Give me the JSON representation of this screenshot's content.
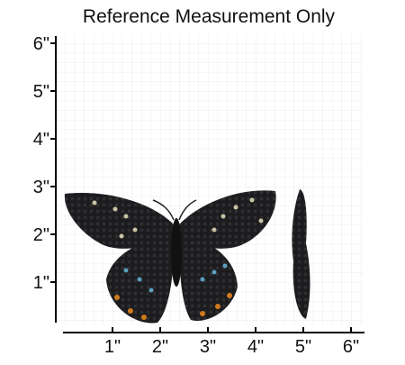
{
  "title": "Reference Measurement Only",
  "ruler": {
    "x_labels": [
      "1\"",
      "2\"",
      "3\"",
      "4\"",
      "5\"",
      "6\""
    ],
    "y_labels": [
      "1\"",
      "2\"",
      "3\"",
      "4\"",
      "5\"",
      "6\""
    ]
  }
}
